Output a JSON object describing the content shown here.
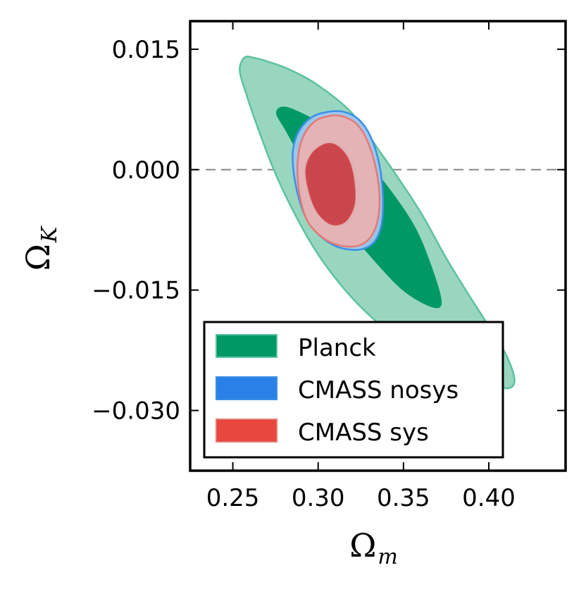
{
  "chart_data": {
    "type": "contour",
    "xlabel": "Ω",
    "xlabel_sub": "m",
    "ylabel": "Ω",
    "ylabel_sub": "K",
    "xlim": [
      0.225,
      0.445
    ],
    "ylim": [
      -0.0375,
      0.0185
    ],
    "x_ticks": [
      0.25,
      0.3,
      0.35,
      0.4
    ],
    "x_tick_labels": [
      "0.25",
      "0.30",
      "0.35",
      "0.40"
    ],
    "y_ticks": [
      0.015,
      0.0,
      -0.015,
      -0.03
    ],
    "y_tick_labels": [
      "0.015",
      "0.000",
      "−0.015",
      "−0.030"
    ],
    "reference_line": {
      "y": 0.0,
      "style": "dashed",
      "color": "#888888"
    },
    "legend_position": "lower-left",
    "series": [
      {
        "name": "Planck",
        "color": "#009966",
        "colors": {
          "outer": "#99d6c0",
          "outer_edge": "#5cc29e",
          "inner": "#009966",
          "inner_edge": "#009966"
        },
        "contours": {
          "outer": [
            [
              0.257,
              0.014
            ],
            [
              0.263,
              0.0139
            ],
            [
              0.27,
              0.0135
            ],
            [
              0.283,
              0.0125
            ],
            [
              0.3,
              0.0105
            ],
            [
              0.32,
              0.007
            ],
            [
              0.337,
              0.002
            ],
            [
              0.35,
              -0.002
            ],
            [
              0.362,
              -0.006
            ],
            [
              0.375,
              -0.011
            ],
            [
              0.388,
              -0.0155
            ],
            [
              0.4,
              -0.0195
            ],
            [
              0.41,
              -0.023
            ],
            [
              0.415,
              -0.026
            ],
            [
              0.412,
              -0.0272
            ],
            [
              0.4,
              -0.0268
            ],
            [
              0.383,
              -0.0255
            ],
            [
              0.36,
              -0.023
            ],
            [
              0.34,
              -0.02
            ],
            [
              0.32,
              -0.016
            ],
            [
              0.303,
              -0.0115
            ],
            [
              0.29,
              -0.007
            ],
            [
              0.276,
              -0.001
            ],
            [
              0.265,
              0.005
            ],
            [
              0.257,
              0.01
            ],
            [
              0.254,
              0.0125
            ]
          ],
          "inner": [
            [
              0.277,
              0.0076
            ],
            [
              0.282,
              0.0077
            ],
            [
              0.292,
              0.0068
            ],
            [
              0.306,
              0.0052
            ],
            [
              0.324,
              0.002
            ],
            [
              0.34,
              -0.002
            ],
            [
              0.356,
              -0.007
            ],
            [
              0.366,
              -0.012
            ],
            [
              0.372,
              -0.0165
            ],
            [
              0.366,
              -0.017
            ],
            [
              0.35,
              -0.015
            ],
            [
              0.334,
              -0.0115
            ],
            [
              0.318,
              -0.0075
            ],
            [
              0.302,
              -0.003
            ],
            [
              0.29,
              0.0015
            ],
            [
              0.281,
              0.005
            ],
            [
              0.276,
              0.0068
            ]
          ]
        }
      },
      {
        "name": "CMASS nosys",
        "color": "#2a80e6",
        "colors": {
          "outer": "#9fc6ee",
          "outer_edge": "#3a8fe8",
          "inner": "#5a7ec8",
          "inner_edge": "#6a8fd0"
        },
        "contours": {
          "outer": [
            [
              0.296,
              0.0065
            ],
            [
              0.306,
              0.0072
            ],
            [
              0.315,
              0.0072
            ],
            [
              0.324,
              0.0062
            ],
            [
              0.331,
              0.004
            ],
            [
              0.336,
              0.0005
            ],
            [
              0.338,
              -0.0035
            ],
            [
              0.337,
              -0.007
            ],
            [
              0.332,
              -0.0092
            ],
            [
              0.322,
              -0.01
            ],
            [
              0.308,
              -0.0093
            ],
            [
              0.295,
              -0.0068
            ],
            [
              0.288,
              -0.003
            ],
            [
              0.285,
              0.0015
            ],
            [
              0.288,
              0.0045
            ]
          ],
          "inner": [
            [
              0.296,
              0.0023
            ],
            [
              0.305,
              0.0034
            ],
            [
              0.313,
              0.003
            ],
            [
              0.319,
              0.0013
            ],
            [
              0.323,
              -0.0015
            ],
            [
              0.323,
              -0.0045
            ],
            [
              0.318,
              -0.0066
            ],
            [
              0.309,
              -0.007
            ],
            [
              0.3,
              -0.0055
            ],
            [
              0.294,
              -0.0028
            ],
            [
              0.292,
              0.0002
            ]
          ]
        }
      },
      {
        "name": "CMASS sys",
        "color": "#e8473f",
        "colors": {
          "outer": "#e8b2b2",
          "outer_edge": "#e57a74",
          "inner": "#c93a40",
          "inner_edge": "#d04a4e"
        },
        "contours": {
          "outer": [
            [
              0.298,
              0.006
            ],
            [
              0.307,
              0.0067
            ],
            [
              0.315,
              0.0066
            ],
            [
              0.323,
              0.0056
            ],
            [
              0.329,
              0.0035
            ],
            [
              0.334,
              0.0
            ],
            [
              0.336,
              -0.0038
            ],
            [
              0.334,
              -0.007
            ],
            [
              0.328,
              -0.009
            ],
            [
              0.318,
              -0.0096
            ],
            [
              0.305,
              -0.0088
            ],
            [
              0.294,
              -0.0065
            ],
            [
              0.289,
              -0.003
            ],
            [
              0.288,
              0.001
            ],
            [
              0.291,
              0.004
            ]
          ],
          "inner": [
            [
              0.297,
              0.0021
            ],
            [
              0.305,
              0.0032
            ],
            [
              0.312,
              0.0028
            ],
            [
              0.318,
              0.0011
            ],
            [
              0.321,
              -0.0016
            ],
            [
              0.321,
              -0.0044
            ],
            [
              0.316,
              -0.0064
            ],
            [
              0.308,
              -0.0068
            ],
            [
              0.3,
              -0.0054
            ],
            [
              0.295,
              -0.0029
            ],
            [
              0.293,
              0.0
            ]
          ]
        }
      }
    ]
  }
}
